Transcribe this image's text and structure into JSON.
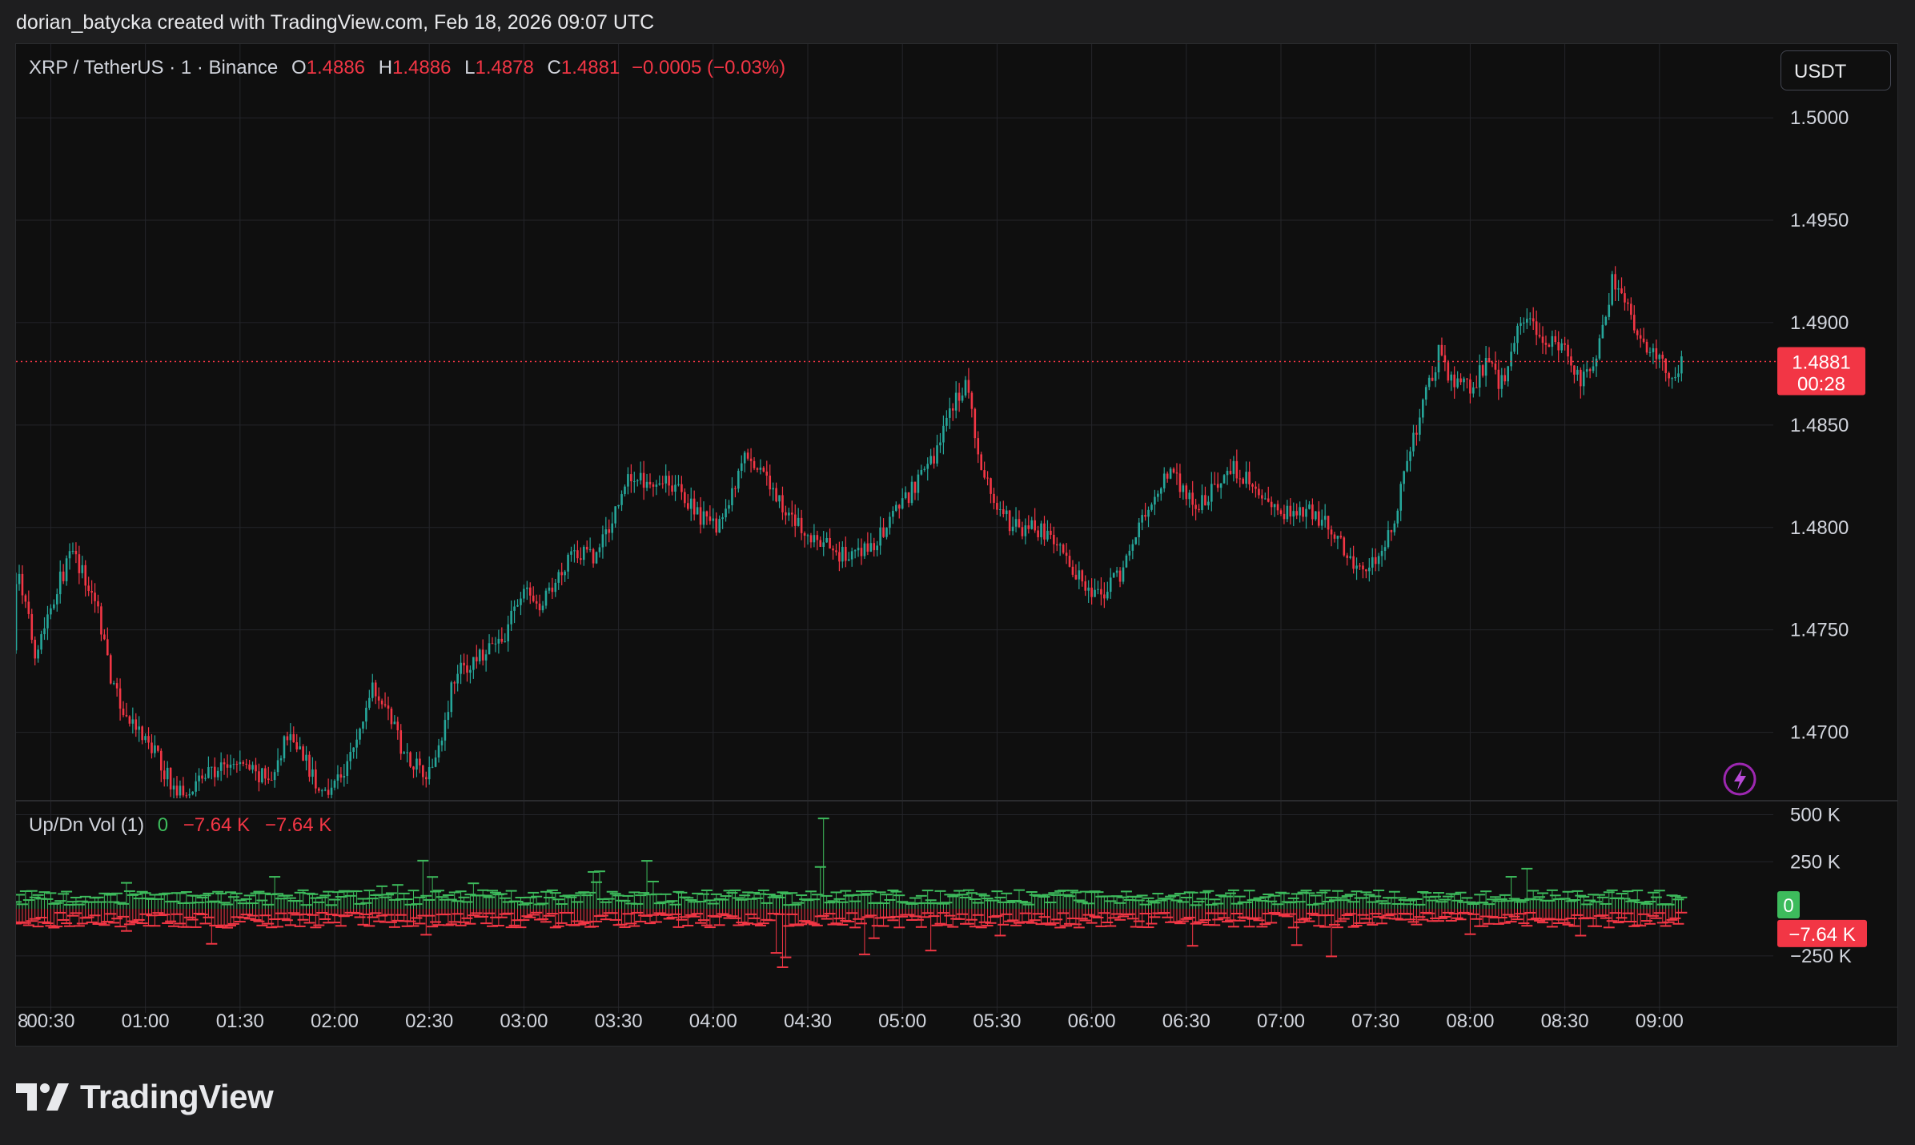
{
  "header": {
    "caption": "dorian_batycka created with TradingView.com, Feb 18, 2026 09:07 UTC"
  },
  "legend": {
    "symbol": "XRP / TetherUS · 1 · Binance",
    "o_label": "O",
    "o_value": "1.4886",
    "h_label": "H",
    "h_value": "1.4886",
    "l_label": "L",
    "l_value": "1.4878",
    "c_label": "C",
    "c_value": "1.4881",
    "change": "−0.0005 (−0.03%)"
  },
  "currency_button": "USDT",
  "price_badge": {
    "price": "1.4881",
    "countdown": "00:28"
  },
  "volume_legend": {
    "name": "Up/Dn Vol (1)",
    "up": "0",
    "down": "−7.64 K",
    "delta": "−7.64 K"
  },
  "volume_badges": {
    "up": "0",
    "down": "−7.64 K"
  },
  "brand": {
    "name": "TradingView"
  },
  "icons": {
    "alert": "lightning-icon",
    "logo": "tradingview-logo-icon"
  },
  "colors": {
    "up": "#26a69a",
    "down": "#f23645",
    "vol_up": "#3dbb5c",
    "vol_down": "#f23645",
    "background": "#0f0f0f",
    "grid": "#24252a"
  },
  "chart_data": [
    {
      "type": "candlestick",
      "title": "XRP / TetherUS · 1 · Binance",
      "timeframe": "1 minute",
      "x_tick_labels": [
        "8",
        "00:30",
        "01:00",
        "01:30",
        "02:00",
        "02:30",
        "03:00",
        "03:30",
        "04:00",
        "04:30",
        "05:00",
        "05:30",
        "06:00",
        "06:30",
        "07:00",
        "07:30",
        "08:00",
        "08:30",
        "09:00"
      ],
      "y_tick_labels": [
        "1.5000",
        "1.4950",
        "1.4900",
        "1.4850",
        "1.4800",
        "1.4750",
        "1.4700"
      ],
      "y_ticks": [
        1.5,
        1.495,
        1.49,
        1.485,
        1.48,
        1.475,
        1.47
      ],
      "ylim": [
        1.4667,
        1.5036
      ],
      "last_price": 1.4881,
      "grid": true,
      "price_path": [
        [
          "00:00",
          1.474
        ],
        [
          "00:05",
          1.4788
        ],
        [
          "00:12",
          1.479
        ],
        [
          "00:20",
          1.4775
        ],
        [
          "00:25",
          1.474
        ],
        [
          "00:33",
          1.4775
        ],
        [
          "00:37",
          1.4788
        ],
        [
          "00:45",
          1.476
        ],
        [
          "00:50",
          1.472
        ],
        [
          "00:55",
          1.4705
        ],
        [
          "01:03",
          1.469
        ],
        [
          "01:10",
          1.467
        ],
        [
          "01:20",
          1.468
        ],
        [
          "01:30",
          1.4685
        ],
        [
          "01:40",
          1.4675
        ],
        [
          "01:45",
          1.47
        ],
        [
          "01:50",
          1.469
        ],
        [
          "01:55",
          1.467
        ],
        [
          "02:03",
          1.468
        ],
        [
          "02:08",
          1.47
        ],
        [
          "02:12",
          1.4725
        ],
        [
          "02:17",
          1.471
        ],
        [
          "02:22",
          1.469
        ],
        [
          "02:30",
          1.468
        ],
        [
          "02:34",
          1.47
        ],
        [
          "02:38",
          1.4728
        ],
        [
          "02:45",
          1.4735
        ],
        [
          "02:53",
          1.4745
        ],
        [
          "03:00",
          1.477
        ],
        [
          "03:05",
          1.476
        ],
        [
          "03:10",
          1.4772
        ],
        [
          "03:15",
          1.479
        ],
        [
          "03:22",
          1.4785
        ],
        [
          "03:27",
          1.48
        ],
        [
          "03:33",
          1.4825
        ],
        [
          "03:40",
          1.4822
        ],
        [
          "03:45",
          1.4825
        ],
        [
          "03:53",
          1.481
        ],
        [
          "04:00",
          1.48
        ],
        [
          "04:05",
          1.481
        ],
        [
          "04:10",
          1.4835
        ],
        [
          "04:18",
          1.482
        ],
        [
          "04:22",
          1.481
        ],
        [
          "04:30",
          1.4795
        ],
        [
          "04:37",
          1.479
        ],
        [
          "04:43",
          1.4785
        ],
        [
          "04:50",
          1.479
        ],
        [
          "04:55",
          1.48
        ],
        [
          "05:00",
          1.4812
        ],
        [
          "05:05",
          1.4822
        ],
        [
          "05:10",
          1.4835
        ],
        [
          "05:15",
          1.4858
        ],
        [
          "05:20",
          1.487
        ],
        [
          "05:25",
          1.483
        ],
        [
          "05:30",
          1.481
        ],
        [
          "05:35",
          1.48
        ],
        [
          "05:42",
          1.48
        ],
        [
          "05:50",
          1.479
        ],
        [
          "06:00",
          1.4765
        ],
        [
          "06:05",
          1.477
        ],
        [
          "06:10",
          1.478
        ],
        [
          "06:15",
          1.48
        ],
        [
          "06:20",
          1.4815
        ],
        [
          "06:25",
          1.4828
        ],
        [
          "06:33",
          1.481
        ],
        [
          "06:40",
          1.482
        ],
        [
          "06:45",
          1.483
        ],
        [
          "06:50",
          1.4822
        ],
        [
          "06:55",
          1.481
        ],
        [
          "07:00",
          1.4805
        ],
        [
          "07:05",
          1.481
        ],
        [
          "07:12",
          1.4805
        ],
        [
          "07:18",
          1.4795
        ],
        [
          "07:25",
          1.478
        ],
        [
          "07:30",
          1.4782
        ],
        [
          "07:35",
          1.48
        ],
        [
          "07:40",
          1.483
        ],
        [
          "07:45",
          1.486
        ],
        [
          "07:50",
          1.4885
        ],
        [
          "07:55",
          1.487
        ],
        [
          "08:00",
          1.4868
        ],
        [
          "08:05",
          1.488
        ],
        [
          "08:10",
          1.487
        ],
        [
          "08:15",
          1.4895
        ],
        [
          "08:20",
          1.49
        ],
        [
          "08:25",
          1.489
        ],
        [
          "08:30",
          1.4885
        ],
        [
          "08:35",
          1.487
        ],
        [
          "08:40",
          1.488
        ],
        [
          "08:45",
          1.492
        ],
        [
          "08:50",
          1.4905
        ],
        [
          "08:55",
          1.489
        ],
        [
          "09:00",
          1.488
        ],
        [
          "09:04",
          1.4875
        ],
        [
          "09:07",
          1.4881
        ]
      ]
    },
    {
      "type": "bar",
      "title": "Up/Dn Vol (1)",
      "y_tick_labels": [
        "500 K",
        "250 K",
        "−250 K"
      ],
      "y_ticks": [
        500000,
        250000,
        -250000
      ],
      "ylim": [
        -510000,
        570000
      ],
      "last_up": 0,
      "last_down": -7640,
      "series": [
        {
          "name": "Up",
          "typical_range": [
            20000,
            100000
          ],
          "max": 480000
        },
        {
          "name": "Down",
          "typical_range": [
            -20000,
            -100000
          ],
          "min": -310000
        }
      ]
    }
  ]
}
